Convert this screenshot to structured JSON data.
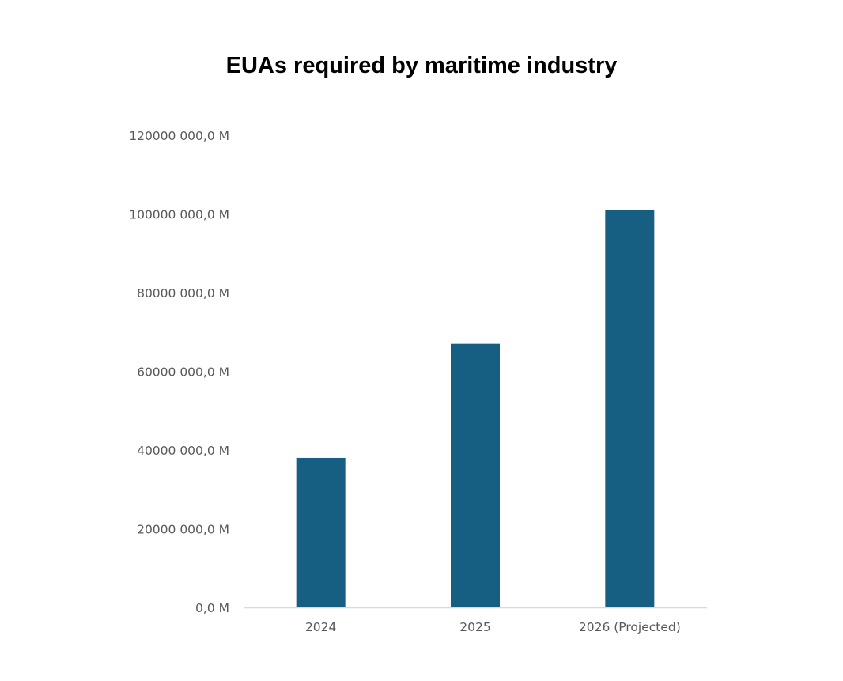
{
  "chart_data": {
    "type": "bar",
    "title": "EUAs required by maritime industry",
    "xlabel": "",
    "ylabel": "",
    "categories": [
      "2024",
      "2025",
      "2026 (Projected)"
    ],
    "series": [
      {
        "values": [
          38000000,
          67000000,
          101000000
        ],
        "color": "#175F82"
      }
    ],
    "ylim": [
      0,
      120000000
    ],
    "yticks": [
      0,
      20000000,
      40000000,
      60000000,
      80000000,
      100000000,
      120000000
    ],
    "ytick_labels": [
      "0,0  M",
      "20000 000,0  M",
      "40000 000,0  M",
      "60000 000,0  M",
      "80000 000,0  M",
      "100000 000,0  M",
      "120000 000,0  M"
    ],
    "grid": false,
    "legend": "none",
    "axis_color": "#D9D9D9"
  }
}
